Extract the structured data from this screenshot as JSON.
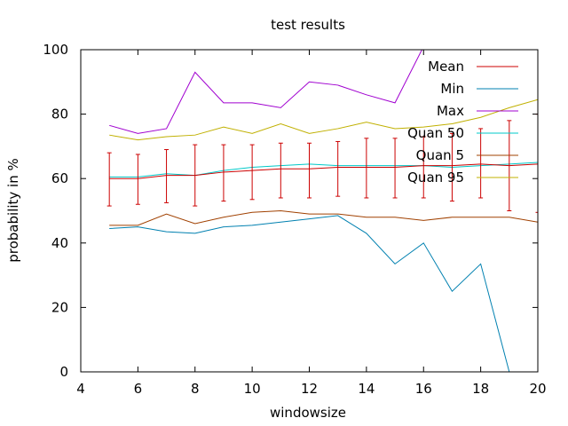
{
  "chart_data": {
    "type": "line",
    "title": "test results",
    "xlabel": "windowsize",
    "ylabel": "probability in %",
    "xlim": [
      4,
      20
    ],
    "ylim": [
      0,
      100
    ],
    "xticks": [
      4,
      6,
      8,
      10,
      12,
      14,
      16,
      18,
      20
    ],
    "yticks": [
      0,
      20,
      40,
      60,
      80,
      100
    ],
    "grid": false,
    "legend_position": "top-right",
    "x": [
      5,
      6,
      7,
      8,
      9,
      10,
      11,
      12,
      13,
      14,
      15,
      16,
      17,
      18,
      19,
      20
    ],
    "series": [
      {
        "name": "Mean",
        "color": "#cc0000",
        "values": [
          60,
          60,
          61,
          61,
          62,
          62.5,
          63,
          63,
          63.5,
          63.5,
          63.5,
          64,
          64,
          64.5,
          64,
          64.5
        ],
        "error": {
          "low": [
            51.5,
            52,
            52.5,
            51.5,
            53,
            53.5,
            54,
            54,
            54.5,
            54,
            54,
            54,
            53,
            54,
            50,
            49.5
          ],
          "high": [
            68,
            67.5,
            69,
            70.5,
            70.5,
            70.5,
            71,
            71,
            71.5,
            72.5,
            72.5,
            73,
            74,
            75.5,
            78,
            80
          ]
        }
      },
      {
        "name": "Min",
        "color": "#0080b0",
        "values": [
          44.5,
          45,
          43.5,
          43,
          45,
          45.5,
          46.5,
          47.5,
          48.5,
          43,
          33.5,
          40,
          25,
          33.5,
          0,
          null
        ]
      },
      {
        "name": "Max",
        "color": "#a000d0",
        "values": [
          76.5,
          74,
          75.5,
          93,
          83.5,
          83.5,
          82,
          90,
          89,
          86,
          83.5,
          101,
          null,
          null,
          null,
          null
        ]
      },
      {
        "name": "Quan 50",
        "color": "#00c8c8",
        "values": [
          60.5,
          60.5,
          61.5,
          61,
          62.5,
          63.5,
          64,
          64.5,
          64,
          64,
          64,
          64,
          63.5,
          64,
          64.5,
          65
        ]
      },
      {
        "name": "Quan 5",
        "color": "#a04000",
        "values": [
          45.5,
          45.5,
          49,
          46,
          48,
          49.5,
          50,
          49,
          49,
          48,
          48,
          47,
          48,
          48,
          48,
          46.5
        ]
      },
      {
        "name": "Quan 95",
        "color": "#c0b000",
        "values": [
          73.5,
          72,
          73,
          73.5,
          76,
          74,
          77,
          74,
          75.5,
          77.5,
          75.5,
          76,
          77,
          79,
          82,
          84.5
        ]
      }
    ]
  }
}
